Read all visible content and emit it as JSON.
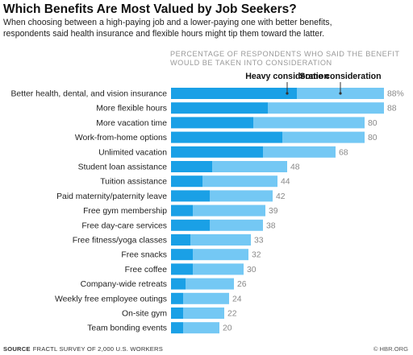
{
  "header": {
    "title": "Which Benefits Are Most Valued by Job Seekers?",
    "subtitle_lines": [
      "When choosing between a high-paying job and a lower-paying one with better benefits,",
      "respondents said health insurance and flexible hours might tip them toward the latter."
    ]
  },
  "note_lines": [
    "PERCENTAGE OF RESPONDENTS WHO SAID THE BENEFIT",
    "WOULD BE TAKEN INTO CONSIDERATION"
  ],
  "footer": {
    "source_label": "SOURCE",
    "source_text": "FRACTL SURVEY OF 2,000 U.S. WORKERS",
    "credit": "© HBR.ORG"
  },
  "colors": {
    "heavy": "#1aa0e6",
    "some": "#74c8f4",
    "tick": "#333333"
  },
  "chart_data": {
    "type": "bar",
    "orientation": "horizontal",
    "stacked": true,
    "categories": [
      "Better health, dental, and vision insurance",
      "More flexible hours",
      "More vacation time",
      "Work-from-home options",
      "Unlimited vacation",
      "Student loan assistance",
      "Tuition assistance",
      "Paid maternity/paternity leave",
      "Free gym membership",
      "Free day-care services",
      "Free fitness/yoga classes",
      "Free snacks",
      "Free coffee",
      "Company-wide retreats",
      "Weekly free employee outings",
      "On-site gym",
      "Team bonding events"
    ],
    "series": [
      {
        "name": "Heavy consideration",
        "values": [
          52,
          40,
          34,
          46,
          38,
          17,
          13,
          16,
          9,
          16,
          8,
          9,
          9,
          6,
          5,
          5,
          5
        ]
      },
      {
        "name": "Some consideration",
        "values": [
          36,
          48,
          46,
          34,
          30,
          31,
          31,
          26,
          30,
          22,
          25,
          23,
          21,
          20,
          19,
          17,
          15
        ]
      }
    ],
    "total_labels": [
      "88%",
      "88",
      "80",
      "80",
      "68",
      "48",
      "44",
      "42",
      "39",
      "38",
      "33",
      "32",
      "30",
      "26",
      "24",
      "22",
      "20"
    ],
    "xlim": [
      0,
      100
    ],
    "grid": false,
    "legend": "top, above bars"
  }
}
